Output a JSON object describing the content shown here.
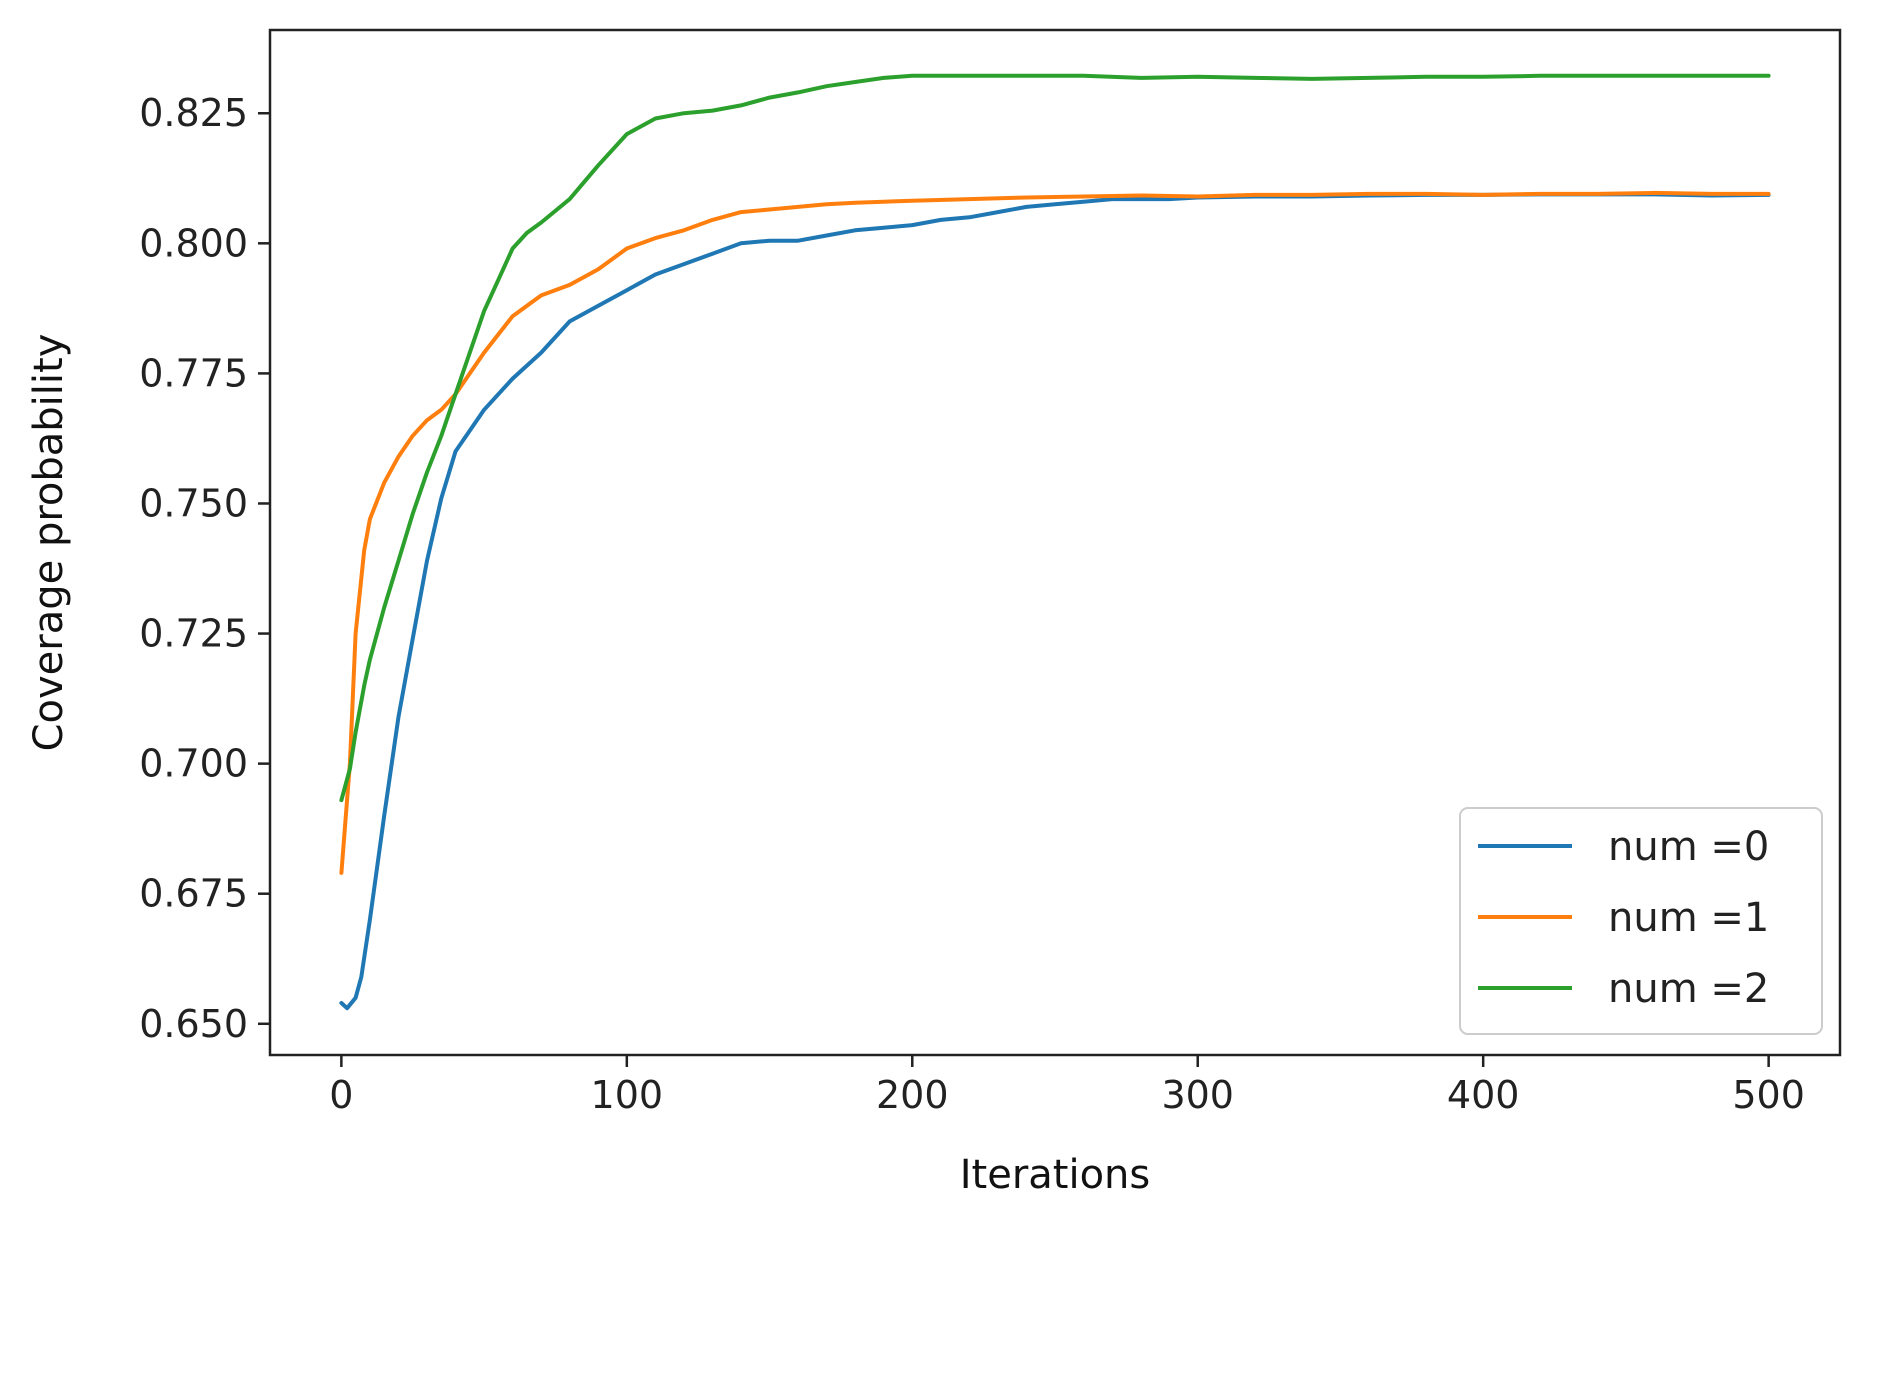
{
  "chart_data": {
    "type": "line",
    "title": "",
    "xlabel": "Iterations",
    "ylabel": "Coverage probability",
    "xlim": [
      -25,
      525
    ],
    "ylim": [
      0.644,
      0.841
    ],
    "xticks": [
      0,
      100,
      200,
      300,
      400,
      500
    ],
    "xtick_labels": [
      "0",
      "100",
      "200",
      "300",
      "400",
      "500"
    ],
    "yticks": [
      0.65,
      0.675,
      0.7,
      0.725,
      0.75,
      0.775,
      0.8,
      0.825
    ],
    "ytick_labels": [
      "0.650",
      "0.675",
      "0.700",
      "0.725",
      "0.750",
      "0.775",
      "0.800",
      "0.825"
    ],
    "grid": false,
    "legend_position": "lower-right",
    "series": [
      {
        "name": "num =0",
        "color": "#1f77b4",
        "x": [
          0,
          2,
          5,
          7,
          10,
          15,
          20,
          25,
          30,
          35,
          40,
          45,
          50,
          60,
          70,
          80,
          90,
          100,
          110,
          120,
          130,
          140,
          150,
          160,
          170,
          180,
          190,
          200,
          210,
          220,
          230,
          240,
          250,
          260,
          270,
          280,
          290,
          300,
          320,
          340,
          360,
          380,
          400,
          420,
          440,
          460,
          480,
          500
        ],
        "y": [
          0.654,
          0.653,
          0.655,
          0.659,
          0.67,
          0.69,
          0.709,
          0.724,
          0.739,
          0.751,
          0.76,
          0.764,
          0.768,
          0.774,
          0.779,
          0.785,
          0.788,
          0.791,
          0.794,
          0.796,
          0.798,
          0.8,
          0.8005,
          0.8005,
          0.8015,
          0.8025,
          0.803,
          0.8035,
          0.8045,
          0.805,
          0.806,
          0.807,
          0.8075,
          0.808,
          0.8085,
          0.8085,
          0.8085,
          0.8088,
          0.809,
          0.809,
          0.8092,
          0.8093,
          0.8093,
          0.8094,
          0.8094,
          0.8094,
          0.8092,
          0.8093
        ]
      },
      {
        "name": "num =1",
        "color": "#ff7f0e",
        "x": [
          0,
          3,
          5,
          8,
          10,
          15,
          20,
          25,
          30,
          35,
          40,
          50,
          60,
          70,
          80,
          90,
          100,
          110,
          120,
          130,
          140,
          150,
          160,
          170,
          180,
          190,
          200,
          220,
          240,
          260,
          280,
          300,
          320,
          340,
          360,
          380,
          400,
          420,
          440,
          460,
          480,
          500
        ],
        "y": [
          0.679,
          0.7,
          0.725,
          0.741,
          0.747,
          0.754,
          0.759,
          0.763,
          0.766,
          0.768,
          0.771,
          0.779,
          0.786,
          0.79,
          0.792,
          0.795,
          0.799,
          0.801,
          0.8025,
          0.8045,
          0.806,
          0.8065,
          0.807,
          0.8075,
          0.8078,
          0.808,
          0.8082,
          0.8085,
          0.8088,
          0.809,
          0.8092,
          0.809,
          0.8093,
          0.8093,
          0.8095,
          0.8095,
          0.8093,
          0.8095,
          0.8095,
          0.8097,
          0.8095,
          0.8095
        ]
      },
      {
        "name": "num =2",
        "color": "#2ca02c",
        "x": [
          0,
          3,
          5,
          8,
          10,
          15,
          20,
          25,
          30,
          35,
          40,
          50,
          55,
          60,
          65,
          70,
          80,
          90,
          100,
          110,
          120,
          130,
          140,
          150,
          160,
          170,
          180,
          190,
          200,
          220,
          240,
          260,
          280,
          300,
          320,
          340,
          360,
          380,
          400,
          420,
          440,
          460,
          480,
          500
        ],
        "y": [
          0.693,
          0.699,
          0.706,
          0.715,
          0.72,
          0.73,
          0.739,
          0.748,
          0.756,
          0.763,
          0.771,
          0.787,
          0.793,
          0.799,
          0.802,
          0.804,
          0.8085,
          0.815,
          0.821,
          0.824,
          0.825,
          0.8255,
          0.8265,
          0.828,
          0.829,
          0.8302,
          0.831,
          0.8318,
          0.8322,
          0.8322,
          0.8322,
          0.8322,
          0.8318,
          0.832,
          0.8318,
          0.8316,
          0.8318,
          0.832,
          0.832,
          0.8322,
          0.8322,
          0.8322,
          0.8322,
          0.8322
        ]
      }
    ]
  }
}
